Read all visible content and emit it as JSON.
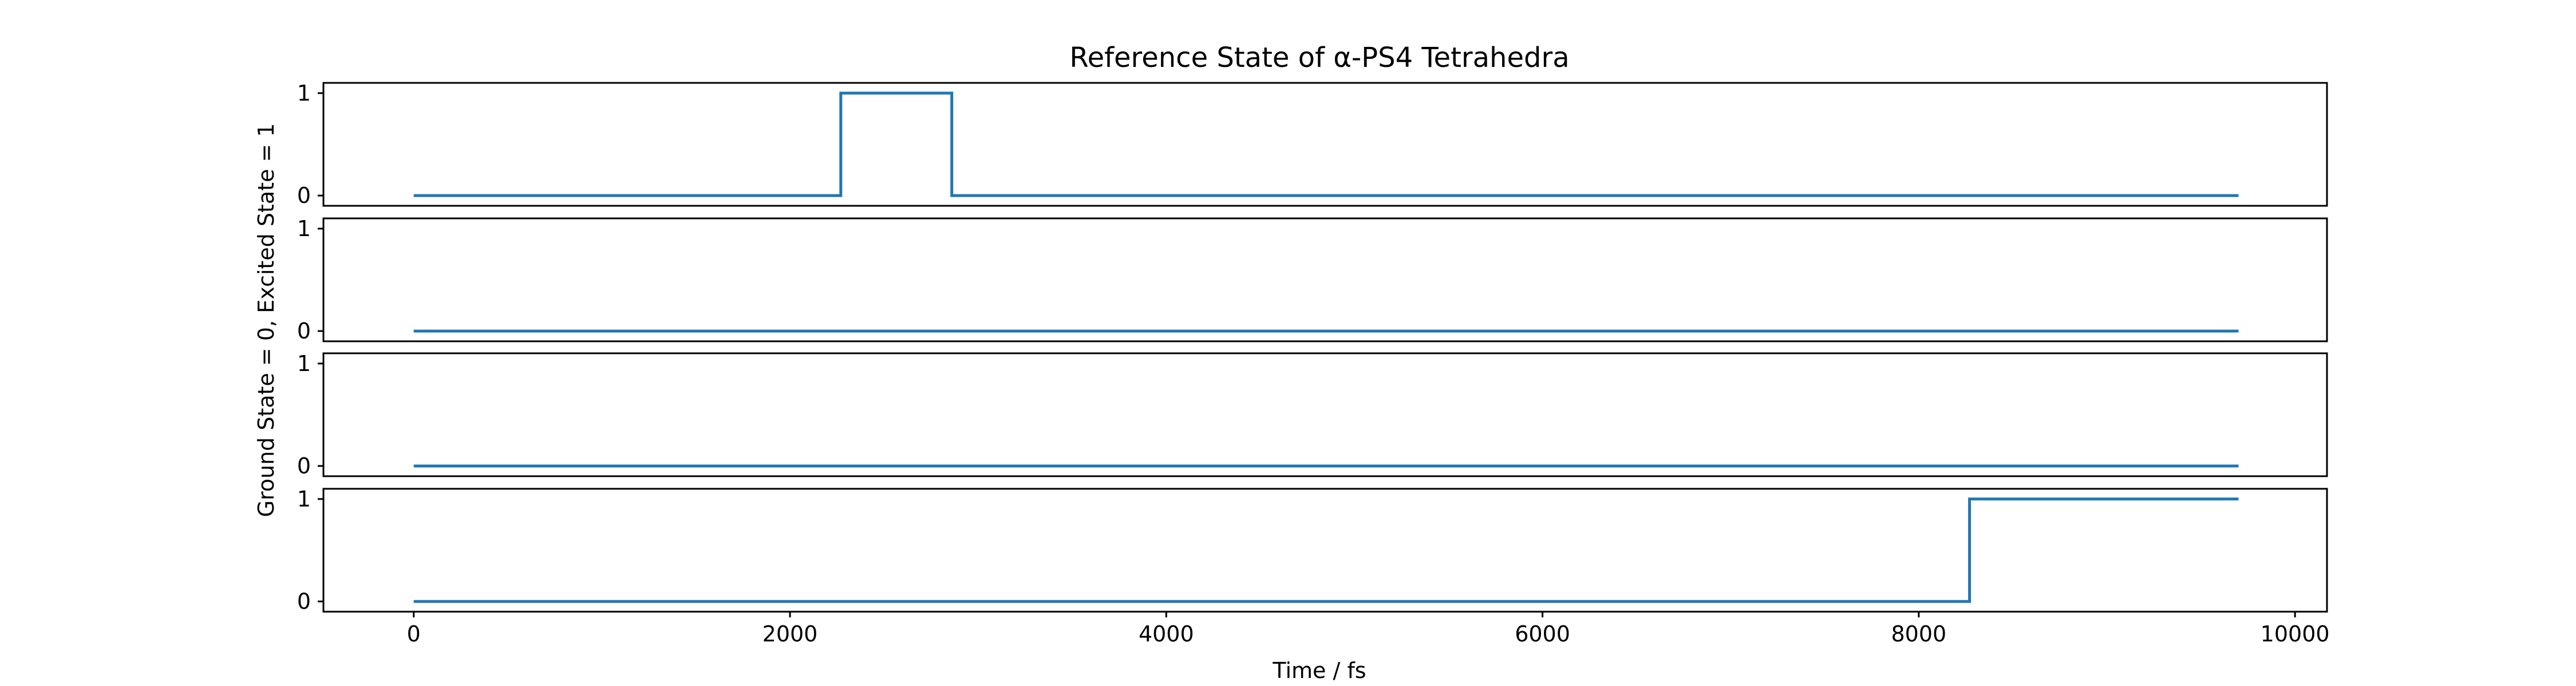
{
  "chart_data": {
    "type": "line",
    "title": "Reference State of α-PS4 Tetrahedra",
    "xlabel": "Time / fs",
    "ylabel": "Ground State = 0, Excited State = 1",
    "xlim": [
      -480,
      10170
    ],
    "ylim": [
      -0.1,
      1.1
    ],
    "xticks": [
      0,
      2000,
      4000,
      6000,
      8000,
      10000
    ],
    "yticks": [
      0,
      1
    ],
    "grid": false,
    "line_color": "#1f77b4",
    "panels": [
      {
        "x": [
          0,
          2270,
          2270,
          2860,
          2860,
          9700
        ],
        "y": [
          0,
          0,
          1,
          1,
          0,
          0
        ]
      },
      {
        "x": [
          0,
          9700
        ],
        "y": [
          0,
          0
        ]
      },
      {
        "x": [
          0,
          9700
        ],
        "y": [
          0,
          0
        ]
      },
      {
        "x": [
          0,
          8270,
          8270,
          9700
        ],
        "y": [
          0,
          0,
          1,
          1
        ]
      }
    ]
  }
}
